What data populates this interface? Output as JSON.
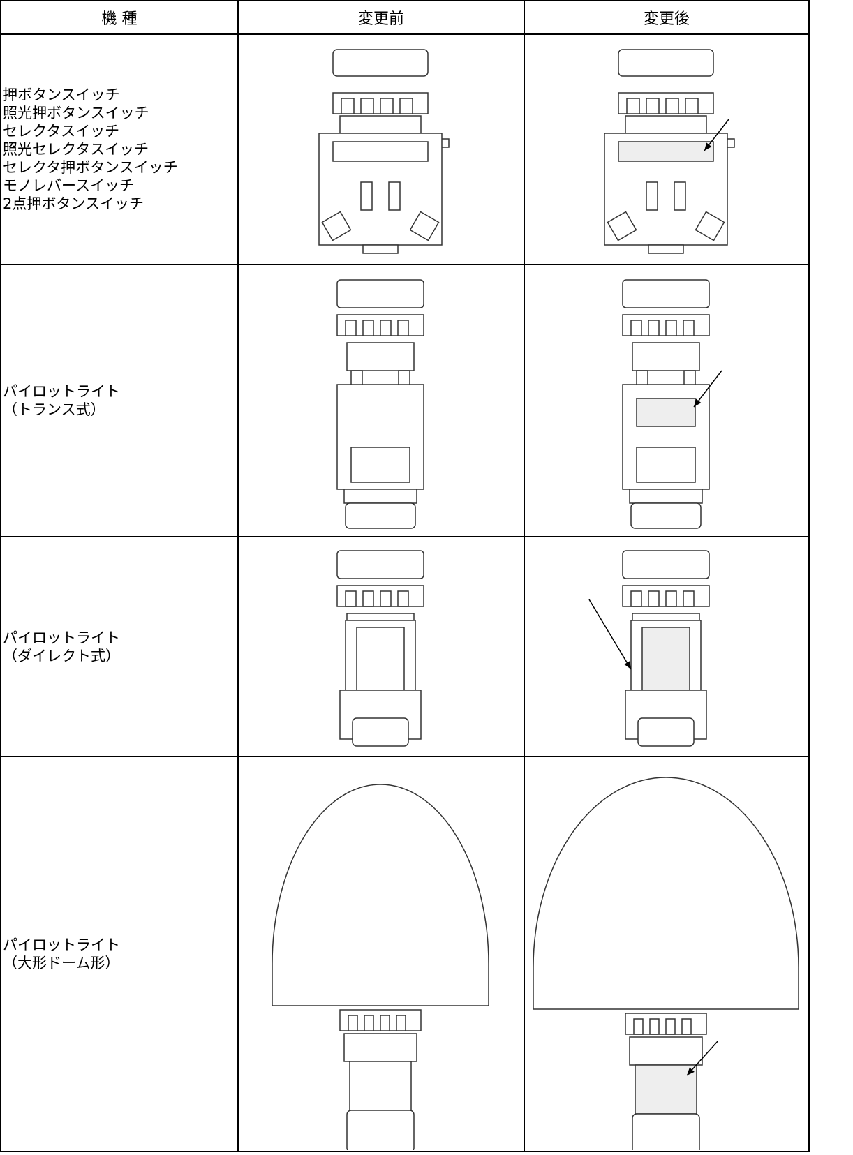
{
  "table": {
    "header": [
      "機 種",
      "変更前",
      "変更後"
    ],
    "rows": [
      {
        "model": [
          "押ボタンスイッチ",
          "照光押ボタンスイッチ",
          "セレクタスイッチ",
          "照光セレクタスイッチ",
          "セレクタ押ボタンスイッチ",
          "モノレバースイッチ",
          "2点押ボタンスイッチ"
        ]
      },
      {
        "model": [
          "パイロットライト",
          "（トランス式）"
        ]
      },
      {
        "model": [
          "パイロットライト",
          "（ダイレクト式）"
        ]
      },
      {
        "model": [
          "パイロットライト",
          "（大形ドーム形）"
        ]
      }
    ]
  }
}
